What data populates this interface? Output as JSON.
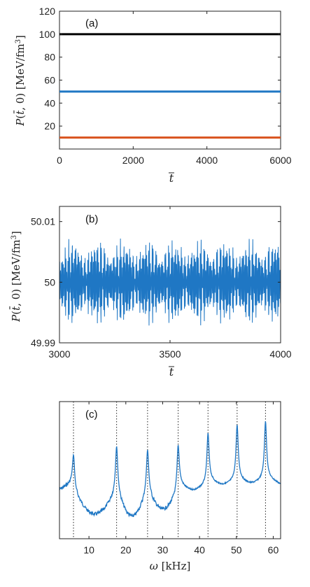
{
  "chart_data": [
    {
      "type": "line",
      "panel_label": "(a)",
      "xlabel": "t̄",
      "ylabel": "P(t̄, 0)   [MeV/fm³]",
      "xlim": [
        0,
        6000
      ],
      "ylim": [
        0,
        120
      ],
      "x_ticks": [
        "0",
        "2000",
        "4000",
        "6000"
      ],
      "y_ticks": [
        "20",
        "40",
        "60",
        "80",
        "100",
        "120"
      ],
      "grid": false,
      "series": [
        {
          "color": "#000000",
          "x": [
            0,
            6000
          ],
          "values": [
            100,
            100
          ]
        },
        {
          "color": "#1f77c4",
          "x": [
            0,
            6000
          ],
          "values": [
            50,
            50
          ]
        },
        {
          "color": "#d9531e",
          "x": [
            0,
            6000
          ],
          "values": [
            10,
            10
          ]
        }
      ]
    },
    {
      "type": "line",
      "panel_label": "(b)",
      "xlabel": "t̄",
      "ylabel": "P(t̄, 0)   [MeV/fm³]",
      "xlim": [
        3000,
        4000
      ],
      "ylim": [
        49.99,
        50.0125
      ],
      "x_ticks": [
        "3000",
        "3500",
        "4000"
      ],
      "y_ticks": [
        "49.99",
        "50",
        "50.01"
      ],
      "grid": false,
      "series": [
        {
          "color": "#1f77c4",
          "description_of_shape": "beating oscillation around 50",
          "mean": 50.0,
          "amplitude": 0.0075,
          "x_range": [
            3000,
            4000
          ]
        }
      ]
    },
    {
      "type": "line",
      "panel_label": "(c)",
      "xlabel": "ω   [kHz]",
      "ylabel": "",
      "xlim": [
        2,
        62
      ],
      "x_ticks": [
        "10",
        "20",
        "30",
        "40",
        "50",
        "60"
      ],
      "y_ticks": [],
      "grid": false,
      "peaks_khz": [
        5.8,
        17.5,
        25.9,
        34.2,
        42.3,
        50.2,
        57.9
      ],
      "series": [
        {
          "color": "#1f77c4",
          "description_of_shape": "power spectrum with sharp peaks at dotted lines"
        }
      ]
    }
  ]
}
